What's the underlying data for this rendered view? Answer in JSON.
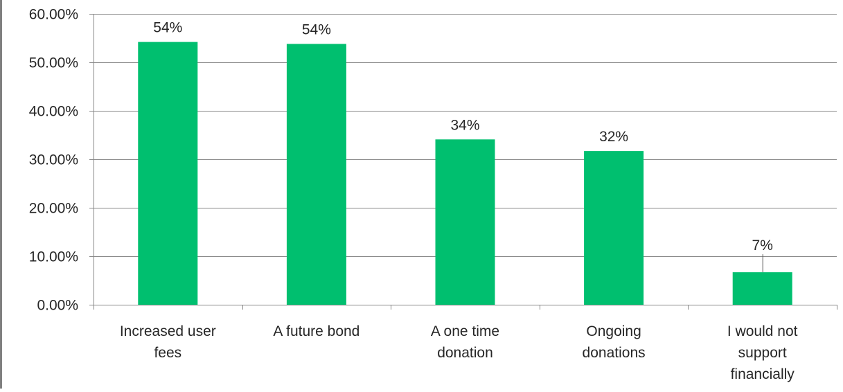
{
  "chart_data": {
    "type": "bar",
    "categories": [
      [
        "Increased user",
        "fees"
      ],
      [
        "A future bond"
      ],
      [
        "A one time",
        "donation"
      ],
      [
        "Ongoing",
        "donations"
      ],
      [
        "I would not",
        "support",
        "financially"
      ]
    ],
    "values": [
      0.542,
      0.538,
      0.341,
      0.317,
      0.067
    ],
    "data_labels": [
      "54%",
      "54%",
      "34%",
      "32%",
      "7%"
    ],
    "y_ticks": [
      "0.00%",
      "10.00%",
      "20.00%",
      "30.00%",
      "40.00%",
      "50.00%",
      "60.00%"
    ],
    "ylim": [
      0,
      0.6
    ],
    "y_step": 0.1,
    "title": "",
    "xlabel": "",
    "ylabel": "",
    "grid": true,
    "legend": "none",
    "colors": {
      "bar": "#00bf6f",
      "grid": "#868686",
      "axis": "#868686",
      "text": "#262626",
      "frame": "#7f7f7f"
    }
  }
}
